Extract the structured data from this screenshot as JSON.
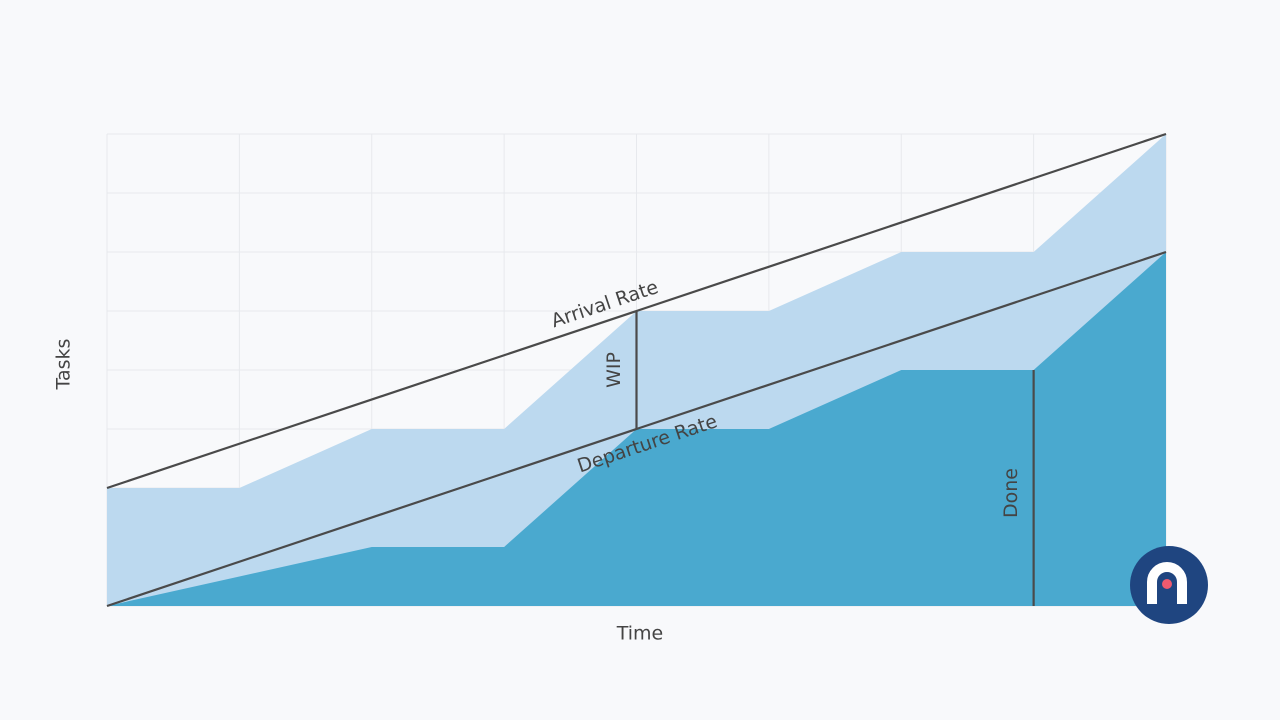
{
  "chart_data": {
    "type": "area",
    "xlabel": "Time",
    "ylabel": "Tasks",
    "x": [
      0,
      1,
      2,
      3,
      4,
      5,
      6,
      7,
      8
    ],
    "series": [
      {
        "color": "#bcd9ef",
        "values": [
          2,
          2,
          3,
          3,
          5,
          5,
          6,
          6,
          8
        ]
      },
      {
        "color": "#4aa9cf",
        "values": [
          0,
          0.5,
          1,
          1,
          3,
          3,
          4,
          4,
          6
        ]
      }
    ],
    "lines": [
      {
        "label": "Arrival Rate",
        "x": [
          0,
          8
        ],
        "values": [
          2,
          8
        ]
      },
      {
        "label": "Departure Rate",
        "x": [
          0,
          8
        ],
        "values": [
          0,
          6
        ]
      }
    ],
    "annotations": [
      {
        "text": "WIP",
        "x": 4,
        "values": [
          3,
          5
        ]
      },
      {
        "text": "Done",
        "x": 7,
        "values": [
          0,
          4
        ]
      }
    ],
    "xlim": [
      0,
      8
    ],
    "ylim": [
      0,
      8
    ],
    "xticks": [
      0,
      1,
      2,
      3,
      4,
      5,
      6,
      7,
      8
    ],
    "yticks": [
      0,
      1,
      2,
      3,
      4,
      5,
      6,
      7,
      8
    ],
    "grid": true,
    "tick_labels": false
  }
}
